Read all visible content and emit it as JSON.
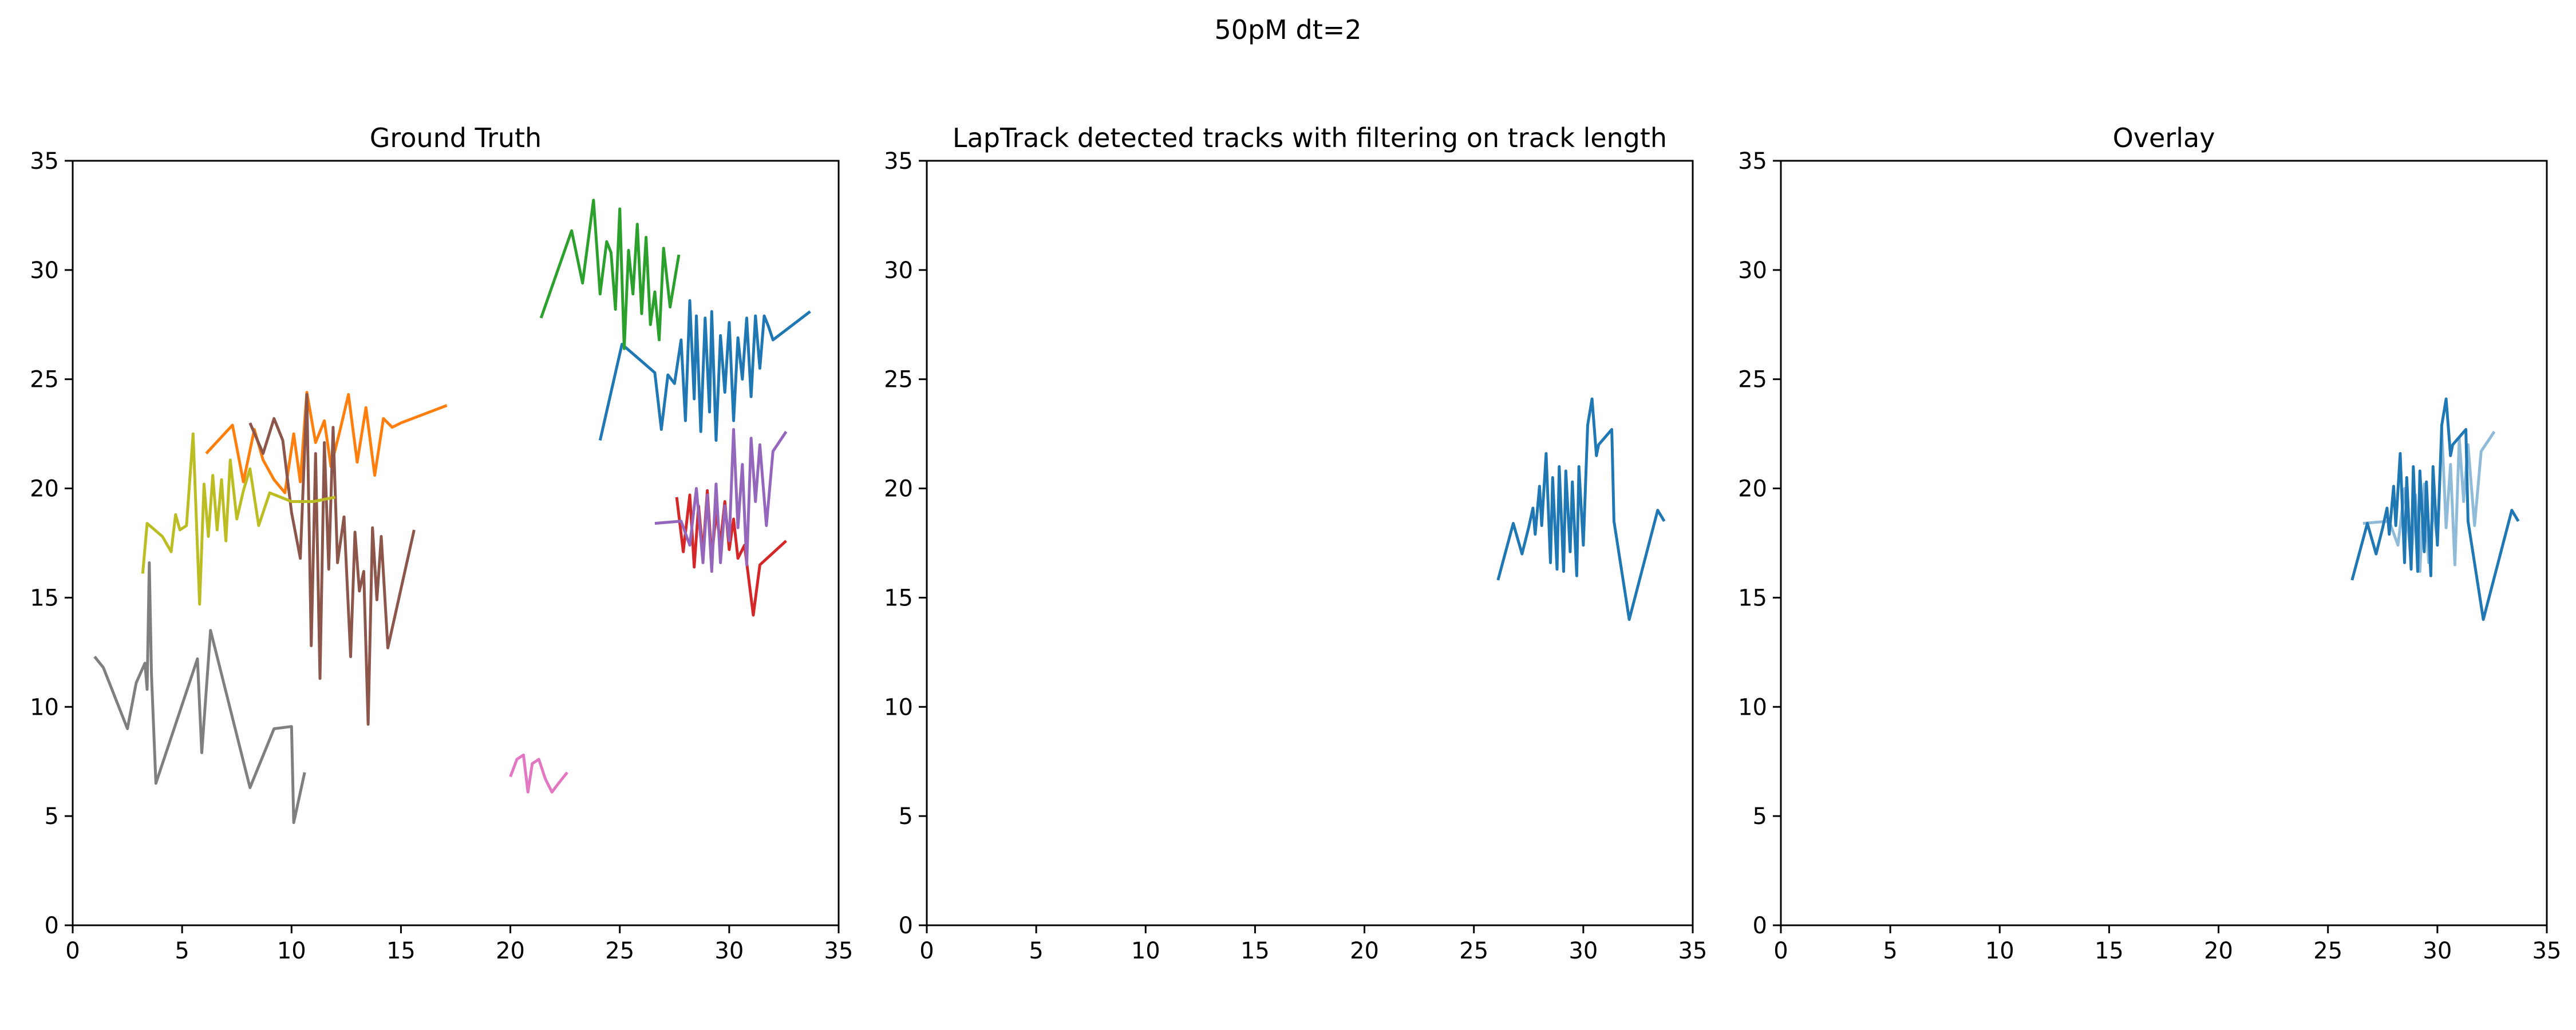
{
  "figure": {
    "suptitle": "50pM dt=2"
  },
  "chart_data": [
    {
      "type": "line",
      "title": "Ground Truth",
      "xlim": [
        0,
        35
      ],
      "ylim": [
        0,
        35
      ],
      "xticks": [
        0,
        5,
        10,
        15,
        20,
        25,
        30,
        35
      ],
      "yticks": [
        0,
        5,
        10,
        15,
        20,
        25,
        30,
        35
      ],
      "grid": false,
      "series": [
        {
          "color": "#1f77b4",
          "x": [
            24.1,
            25.1,
            26.6,
            26.9,
            27.2,
            27.5,
            27.8,
            28.0,
            28.2,
            28.4,
            28.5,
            28.7,
            28.9,
            29.1,
            29.2,
            29.4,
            29.6,
            29.8,
            30.0,
            30.2,
            30.4,
            30.6,
            30.8,
            31.0,
            31.2,
            31.4,
            31.6,
            31.8,
            32.0,
            33.7
          ],
          "y": [
            22.2,
            26.6,
            25.3,
            22.7,
            25.2,
            24.8,
            26.8,
            23.1,
            28.6,
            24.1,
            27.9,
            22.6,
            27.8,
            23.5,
            28.1,
            22.2,
            27.0,
            24.4,
            27.6,
            23.1,
            26.9,
            25.0,
            27.8,
            24.2,
            27.9,
            25.5,
            27.9,
            27.4,
            26.8,
            28.1
          ]
        },
        {
          "color": "#ff7f0e",
          "x": [
            6.1,
            7.3,
            7.8,
            8.3,
            8.7,
            9.2,
            9.7,
            10.1,
            10.4,
            10.7,
            11.1,
            11.5,
            11.8,
            12.2,
            12.6,
            13.0,
            13.4,
            13.8,
            14.2,
            14.6,
            15.0,
            17.1
          ],
          "y": [
            21.6,
            22.9,
            20.3,
            22.7,
            21.3,
            20.4,
            19.8,
            22.5,
            20.3,
            24.4,
            22.1,
            23.1,
            21.0,
            22.6,
            24.3,
            21.2,
            23.7,
            20.6,
            23.2,
            22.8,
            23.0,
            23.8
          ]
        },
        {
          "color": "#2ca02c",
          "x": [
            21.4,
            22.8,
            23.3,
            23.8,
            24.1,
            24.4,
            24.6,
            24.8,
            25.0,
            25.2,
            25.4,
            25.6,
            25.8,
            26.0,
            26.2,
            26.4,
            26.6,
            26.8,
            27.0,
            27.3,
            27.7
          ],
          "y": [
            27.8,
            31.8,
            29.4,
            33.2,
            28.9,
            31.3,
            30.8,
            28.2,
            32.8,
            26.4,
            30.9,
            28.9,
            32.1,
            28.0,
            31.5,
            27.5,
            29.0,
            26.8,
            31.0,
            28.3,
            30.7
          ]
        },
        {
          "color": "#d62728",
          "x": [
            27.6,
            27.9,
            28.2,
            28.4,
            28.6,
            28.8,
            29.0,
            29.2,
            29.4,
            29.6,
            29.8,
            30.0,
            30.2,
            30.4,
            30.7,
            31.1,
            31.4,
            32.6
          ],
          "y": [
            19.6,
            17.1,
            19.7,
            16.4,
            19.2,
            17.0,
            19.9,
            16.8,
            18.9,
            17.5,
            19.4,
            17.2,
            18.6,
            16.8,
            17.4,
            14.2,
            16.5,
            17.6
          ]
        },
        {
          "color": "#9467bd",
          "x": [
            26.6,
            27.8,
            28.2,
            28.5,
            28.8,
            29.0,
            29.2,
            29.4,
            29.6,
            29.8,
            30.0,
            30.2,
            30.4,
            30.6,
            30.8,
            31.0,
            31.2,
            31.4,
            31.7,
            32.0,
            32.6
          ],
          "y": [
            18.4,
            18.5,
            17.4,
            20.0,
            16.6,
            19.7,
            16.2,
            20.2,
            16.6,
            19.2,
            17.6,
            22.7,
            18.2,
            21.1,
            16.5,
            22.3,
            19.4,
            22.0,
            18.3,
            21.7,
            22.6
          ]
        },
        {
          "color": "#8c564b",
          "x": [
            8.1,
            8.7,
            9.2,
            9.6,
            10.0,
            10.4,
            10.7,
            10.9,
            11.1,
            11.3,
            11.5,
            11.7,
            11.9,
            12.1,
            12.4,
            12.7,
            12.9,
            13.1,
            13.3,
            13.5,
            13.7,
            13.9,
            14.1,
            14.4,
            15.6
          ],
          "y": [
            23.0,
            21.6,
            23.2,
            22.2,
            18.9,
            16.8,
            24.3,
            12.8,
            21.6,
            11.3,
            22.1,
            16.3,
            22.8,
            16.6,
            18.7,
            12.3,
            18.0,
            15.3,
            16.2,
            9.2,
            18.2,
            14.9,
            17.8,
            12.7,
            18.1
          ]
        },
        {
          "color": "#e377c2",
          "x": [
            20.0,
            20.3,
            20.6,
            20.8,
            21.0,
            21.3,
            21.6,
            21.9,
            22.2,
            22.6
          ],
          "y": [
            6.8,
            7.6,
            7.8,
            6.1,
            7.4,
            7.6,
            6.7,
            6.1,
            6.5,
            7.0
          ]
        },
        {
          "color": "#7f7f7f",
          "x": [
            1.0,
            1.4,
            2.5,
            2.9,
            3.3,
            3.4,
            3.5,
            3.6,
            3.8,
            5.7,
            5.9,
            6.3,
            8.1,
            9.2,
            10.0,
            10.1,
            10.6
          ],
          "y": [
            12.3,
            11.8,
            9.0,
            11.1,
            12.0,
            10.8,
            16.6,
            11.5,
            6.5,
            12.2,
            7.9,
            13.5,
            6.3,
            9.0,
            9.1,
            4.7,
            7.0
          ]
        },
        {
          "color": "#bcbd22",
          "x": [
            3.2,
            3.4,
            4.1,
            4.5,
            4.7,
            4.9,
            5.2,
            5.5,
            5.8,
            6.0,
            6.2,
            6.4,
            6.6,
            6.8,
            7.0,
            7.2,
            7.5,
            7.8,
            8.1,
            8.5,
            9.0,
            10.0,
            11.0,
            12.0
          ],
          "y": [
            16.1,
            18.4,
            17.8,
            17.1,
            18.8,
            18.1,
            18.3,
            22.5,
            14.7,
            20.2,
            17.8,
            20.6,
            18.1,
            20.4,
            17.6,
            21.3,
            18.6,
            19.9,
            20.9,
            18.3,
            19.8,
            19.4,
            19.4,
            19.6
          ]
        }
      ]
    },
    {
      "type": "line",
      "title": "LapTrack detected tracks with filtering on track length",
      "xlim": [
        0,
        35
      ],
      "ylim": [
        0,
        35
      ],
      "xticks": [
        0,
        5,
        10,
        15,
        20,
        25,
        30,
        35
      ],
      "yticks": [
        0,
        5,
        10,
        15,
        20,
        25,
        30,
        35
      ],
      "grid": false,
      "series": [
        {
          "color": "#1f77b4",
          "x": [
            26.1,
            26.8,
            27.2,
            27.5,
            27.7,
            27.8,
            28.0,
            28.1,
            28.3,
            28.5,
            28.6,
            28.8,
            28.9,
            29.1,
            29.2,
            29.4,
            29.5,
            29.7,
            29.8,
            30.0,
            30.2,
            30.4,
            30.6,
            30.7,
            31.3,
            31.4,
            32.1,
            33.4,
            33.7
          ],
          "y": [
            15.8,
            18.4,
            17.0,
            18.2,
            19.1,
            17.9,
            20.1,
            18.3,
            21.6,
            16.6,
            20.5,
            16.3,
            21.0,
            16.2,
            20.8,
            17.1,
            20.3,
            16.0,
            21.0,
            17.4,
            22.9,
            24.1,
            21.5,
            22.0,
            22.7,
            18.5,
            14.0,
            19.0,
            18.5
          ]
        }
      ]
    },
    {
      "type": "line",
      "title": "Overlay",
      "xlim": [
        0,
        35
      ],
      "ylim": [
        0,
        35
      ],
      "xticks": [
        0,
        5,
        10,
        15,
        20,
        25,
        30,
        35
      ],
      "yticks": [
        0,
        5,
        10,
        15,
        20,
        25,
        30,
        35
      ],
      "grid": false,
      "series": [
        {
          "color": "#1f77b4",
          "opacity": 0.5,
          "x": [
            26.6,
            27.8,
            28.2,
            28.5,
            28.8,
            29.0,
            29.2,
            29.4,
            29.6,
            29.8,
            30.0,
            30.2,
            30.4,
            30.6,
            30.8,
            31.0,
            31.2,
            31.4,
            31.7,
            32.0,
            32.6
          ],
          "y": [
            18.4,
            18.5,
            17.4,
            20.0,
            16.6,
            19.7,
            16.2,
            20.2,
            16.6,
            19.2,
            17.6,
            22.7,
            18.2,
            21.1,
            16.5,
            22.3,
            19.4,
            22.0,
            18.3,
            21.7,
            22.6
          ]
        },
        {
          "color": "#1f77b4",
          "x": [
            26.1,
            26.8,
            27.2,
            27.5,
            27.7,
            27.8,
            28.0,
            28.1,
            28.3,
            28.5,
            28.6,
            28.8,
            28.9,
            29.1,
            29.2,
            29.4,
            29.5,
            29.7,
            29.8,
            30.0,
            30.2,
            30.4,
            30.6,
            30.7,
            31.3,
            31.4,
            32.1,
            33.4,
            33.7
          ],
          "y": [
            15.8,
            18.4,
            17.0,
            18.2,
            19.1,
            17.9,
            20.1,
            18.3,
            21.6,
            16.6,
            20.5,
            16.3,
            21.0,
            16.2,
            20.8,
            17.1,
            20.3,
            16.0,
            21.0,
            17.4,
            22.9,
            24.1,
            21.5,
            22.0,
            22.7,
            18.5,
            14.0,
            19.0,
            18.5
          ]
        }
      ]
    }
  ]
}
